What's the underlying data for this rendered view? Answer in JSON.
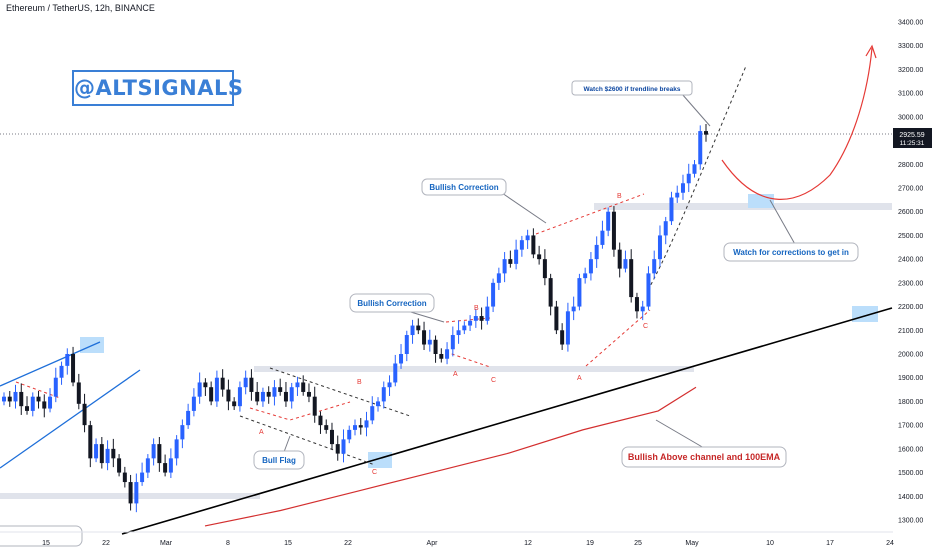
{
  "header": {
    "symbol_line": "Ethereum / TetherUS, 12h, BINANCE"
  },
  "watermark": {
    "text": "@ALTSIGNALS",
    "color": "#3a7fd6"
  },
  "price_tag": {
    "price": "2925.59",
    "countdown": "11:25:31"
  },
  "annotations": {
    "watch_2600": "Watch $2600 if trendline breaks",
    "bullish_correction_1": "Bullish Correction",
    "bullish_correction_2": "Bullish Correction",
    "bull_flag": "Bull Flag",
    "corrections": "Watch for corrections to get in",
    "above_channel": "Bullish Above channel and 100EMA"
  },
  "wave_labels": {
    "flag_a": "A",
    "flag_b": "B",
    "flag_c": "C",
    "corr1_a": "A",
    "corr1_b": "B",
    "corr1_c": "C",
    "corr2_a": "A",
    "corr2_b": "B",
    "corr2_c": "C"
  },
  "colors": {
    "up": "#2962ff",
    "down": "#131722",
    "ema": "#d32f2f",
    "annot_red": "#e53935",
    "annot_blue": "#1565c0"
  },
  "chart_data": {
    "type": "candlestick",
    "title": "Ethereum / TetherUS, 12h, BINANCE",
    "x_ticks": [
      "15",
      "22",
      "Mar",
      "8",
      "15",
      "22",
      "Apr",
      "12",
      "19",
      "25",
      "May",
      "10",
      "17",
      "24"
    ],
    "y_ticks": [
      1300,
      1400,
      1500,
      1600,
      1700,
      1800,
      1900,
      2000,
      2100,
      2200,
      2300,
      2400,
      2500,
      2600,
      2700,
      2800,
      2900,
      3000,
      3100,
      3200,
      3300,
      3400
    ],
    "ylim": [
      1260,
      3470
    ],
    "last_price": 2925.59,
    "support_zones": [
      [
        1930,
        1960
      ],
      [
        2620,
        2650
      ],
      [
        1390,
        1410
      ]
    ],
    "ema_100": [
      [
        0,
        1275
      ],
      [
        20,
        1340
      ],
      [
        40,
        1420
      ],
      [
        60,
        1500
      ],
      [
        80,
        1580
      ],
      [
        100,
        1680
      ],
      [
        120,
        1760
      ],
      [
        130,
        1860
      ]
    ],
    "trendline": [
      [
        1300,
        0
      ],
      [
        2205,
        1
      ]
    ],
    "candles_close": [
      1820,
      1800,
      1840,
      1780,
      1760,
      1820,
      1800,
      1770,
      1820,
      1900,
      1950,
      2000,
      1880,
      1790,
      1700,
      1560,
      1620,
      1540,
      1600,
      1560,
      1500,
      1460,
      1370,
      1460,
      1500,
      1560,
      1620,
      1540,
      1500,
      1560,
      1640,
      1700,
      1760,
      1820,
      1880,
      1860,
      1800,
      1900,
      1850,
      1800,
      1780,
      1860,
      1900,
      1840,
      1800,
      1840,
      1820,
      1860,
      1840,
      1800,
      1860,
      1880,
      1840,
      1820,
      1740,
      1700,
      1680,
      1620,
      1580,
      1640,
      1680,
      1700,
      1690,
      1720,
      1780,
      1800,
      1860,
      1880,
      1960,
      2000,
      2080,
      2120,
      2100,
      2040,
      2060,
      2000,
      1980,
      2020,
      2080,
      2100,
      2120,
      2140,
      2160,
      2140,
      2200,
      2300,
      2340,
      2400,
      2380,
      2440,
      2480,
      2500,
      2420,
      2400,
      2320,
      2200,
      2100,
      2040,
      2180,
      2200,
      2320,
      2340,
      2400,
      2460,
      2520,
      2600,
      2440,
      2360,
      2400,
      2240,
      2180,
      2200,
      2340,
      2400,
      2500,
      2560,
      2660,
      2680,
      2720,
      2760,
      2800,
      2940,
      2925
    ]
  }
}
